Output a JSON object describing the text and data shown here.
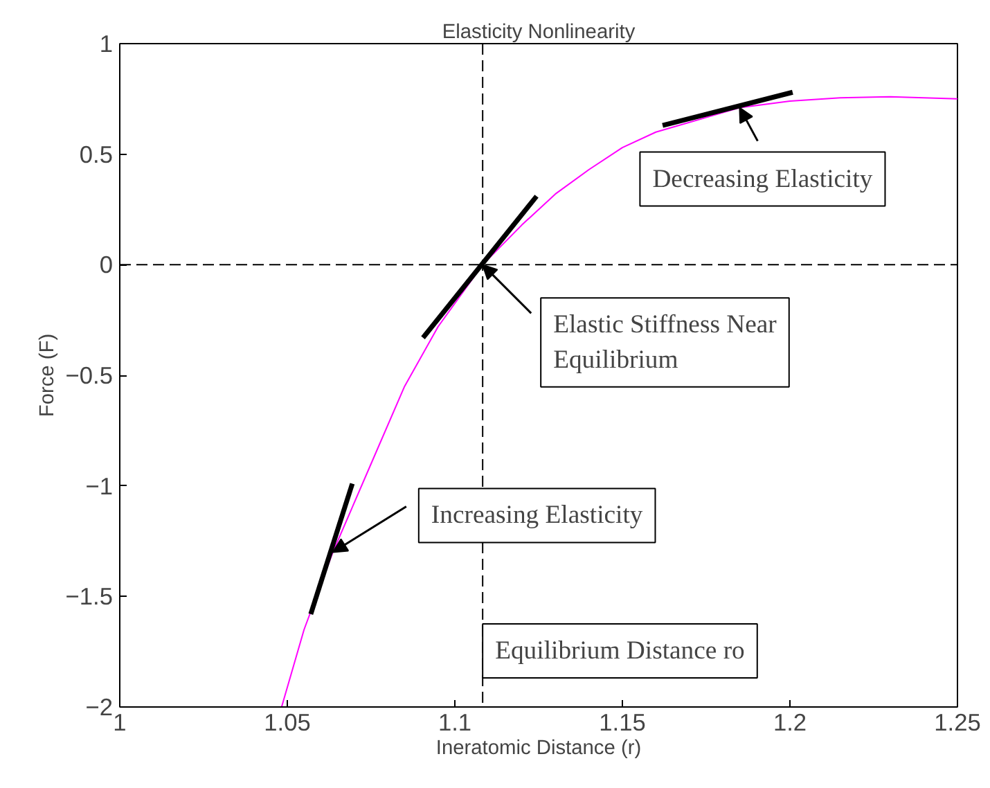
{
  "chart_data": {
    "type": "line",
    "title": "Elasticity Nonlinearity",
    "xlabel": "Ineratomic Distance (r)",
    "ylabel": "Force (F)",
    "xlim": [
      1,
      1.25
    ],
    "ylim": [
      -2,
      1
    ],
    "xticks": [
      1,
      1.05,
      1.1,
      1.15,
      1.2,
      1.25
    ],
    "yticks": [
      -2,
      -1.5,
      -1,
      -0.5,
      0,
      0.5,
      1
    ],
    "grid": false,
    "marker": "none",
    "series": [
      {
        "color": "#ff00ff",
        "x": [
          1.0483,
          1.055,
          1.0636,
          1.075,
          1.085,
          1.095,
          1.1083,
          1.12,
          1.13,
          1.14,
          1.15,
          1.16,
          1.185,
          1.2,
          1.215,
          1.23,
          1.25
        ],
        "values": [
          -2.0,
          -1.65,
          -1.3,
          -0.9,
          -0.55,
          -0.28,
          0.0,
          0.18,
          0.32,
          0.43,
          0.53,
          0.6,
          0.71,
          0.74,
          0.755,
          0.76,
          0.75
        ]
      },
      {
        "color": "#000000",
        "x": [
          1.057,
          1.0694
        ],
        "values": [
          -1.58,
          -0.99
        ]
      },
      {
        "color": "#000000",
        "x": [
          1.0905,
          1.1244
        ],
        "values": [
          -0.33,
          0.31
        ]
      },
      {
        "color": "#000000",
        "x": [
          1.162,
          1.2008
        ],
        "values": [
          0.63,
          0.78
        ]
      }
    ],
    "ref_lines": [
      {
        "axis": "x",
        "value": 1.1083,
        "label": "Equilibrium Distance ro",
        "line_style": "dashed",
        "color": "#000000"
      },
      {
        "axis": "y",
        "value": 0,
        "label": null,
        "line_style": "dashed",
        "color": "#000000"
      }
    ],
    "annotations": [
      {
        "text": "Decreasing Elasticity",
        "x": 1.185,
        "y": 0.71
      },
      {
        "text": "Elastic Stiffness Near\nEquilibrium",
        "x": 1.1083,
        "y": 0.0
      },
      {
        "text": "Increasing Elasticity",
        "x": 1.0636,
        "y": -1.3
      }
    ]
  }
}
